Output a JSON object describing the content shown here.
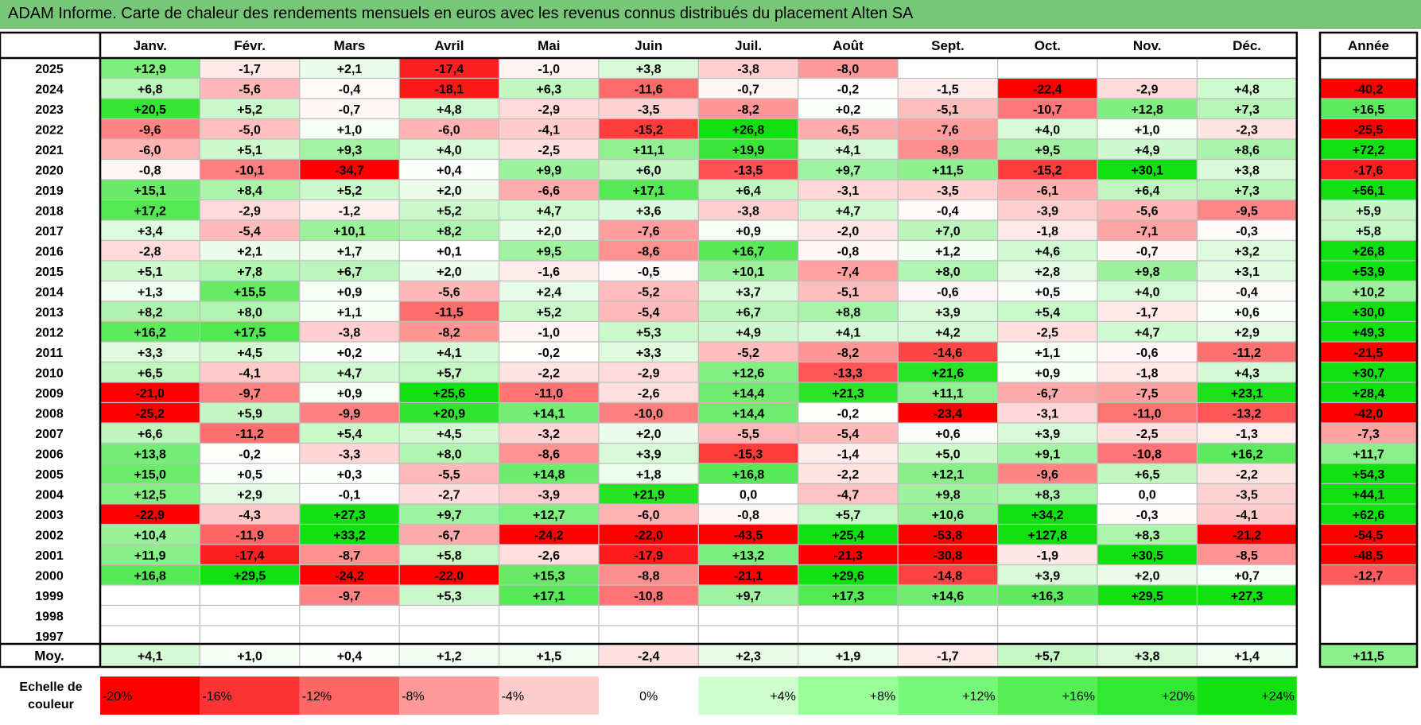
{
  "title": "ADAM Informe. Carte de chaleur des rendements mensuels en euros avec les revenus connus distribués du placement Alten SA",
  "chart_data": {
    "type": "heatmap",
    "columns": [
      "Janv.",
      "Févr.",
      "Mars",
      "Avril",
      "Mai",
      "Juin",
      "Juil.",
      "Août",
      "Sept.",
      "Oct.",
      "Nov.",
      "Déc."
    ],
    "year_column": "Année",
    "rows": [
      {
        "year": "2025",
        "months": [
          "+12,9",
          "-1,7",
          "+2,1",
          "-17,4",
          "-1,0",
          "+3,8",
          "-3,8",
          "-8,0",
          "",
          "",
          "",
          ""
        ],
        "annual": ""
      },
      {
        "year": "2024",
        "months": [
          "+6,8",
          "-5,6",
          "-0,4",
          "-18,1",
          "+6,3",
          "-11,6",
          "-0,7",
          "-0,2",
          "-1,5",
          "-22,4",
          "-2,9",
          "+4,8"
        ],
        "annual": "-40,2"
      },
      {
        "year": "2023",
        "months": [
          "+20,5",
          "+5,2",
          "-0,7",
          "+4,8",
          "-2,9",
          "-3,5",
          "-8,2",
          "+0,2",
          "-5,1",
          "-10,7",
          "+12,8",
          "+7,3"
        ],
        "annual": "+16,5"
      },
      {
        "year": "2022",
        "months": [
          "-9,6",
          "-5,0",
          "+1,0",
          "-6,0",
          "-4,1",
          "-15,2",
          "+26,8",
          "-6,5",
          "-7,6",
          "+4,0",
          "+1,0",
          "-2,3"
        ],
        "annual": "-25,5"
      },
      {
        "year": "2021",
        "months": [
          "-6,0",
          "+5,1",
          "+9,3",
          "+4,0",
          "-2,5",
          "+11,1",
          "+19,9",
          "+4,1",
          "-8,9",
          "+9,5",
          "+4,9",
          "+8,6"
        ],
        "annual": "+72,2"
      },
      {
        "year": "2020",
        "months": [
          "-0,8",
          "-10,1",
          "-34,7",
          "+0,4",
          "+9,9",
          "+6,0",
          "-13,5",
          "+9,7",
          "+11,5",
          "-15,2",
          "+30,1",
          "+3,8"
        ],
        "annual": "-17,6"
      },
      {
        "year": "2019",
        "months": [
          "+15,1",
          "+8,4",
          "+5,2",
          "+2,0",
          "-6,6",
          "+17,1",
          "+6,4",
          "-3,1",
          "-3,5",
          "-6,1",
          "+6,4",
          "+7,3"
        ],
        "annual": "+56,1"
      },
      {
        "year": "2018",
        "months": [
          "+17,2",
          "-2,9",
          "-1,2",
          "+5,2",
          "+4,7",
          "+3,6",
          "-3,8",
          "+4,7",
          "-0,4",
          "-3,9",
          "-5,6",
          "-9,5"
        ],
        "annual": "+5,9"
      },
      {
        "year": "2017",
        "months": [
          "+3,4",
          "-5,4",
          "+10,1",
          "+8,2",
          "+2,0",
          "-7,6",
          "+0,9",
          "-2,0",
          "+7,0",
          "-1,8",
          "-7,1",
          "-0,3"
        ],
        "annual": "+5,8"
      },
      {
        "year": "2016",
        "months": [
          "-2,8",
          "+2,1",
          "+1,7",
          "+0,1",
          "+9,5",
          "-8,6",
          "+16,7",
          "-0,8",
          "+1,2",
          "+4,6",
          "-0,7",
          "+3,2"
        ],
        "annual": "+26,8"
      },
      {
        "year": "2015",
        "months": [
          "+5,1",
          "+7,8",
          "+6,7",
          "+2,0",
          "-1,6",
          "-0,5",
          "+10,1",
          "-7,4",
          "+8,0",
          "+2,8",
          "+9,8",
          "+3,1"
        ],
        "annual": "+53,9"
      },
      {
        "year": "2014",
        "months": [
          "+1,3",
          "+15,5",
          "+0,9",
          "-5,6",
          "+2,4",
          "-5,2",
          "+3,7",
          "-5,1",
          "-0,6",
          "+0,5",
          "+4,0",
          "-0,4"
        ],
        "annual": "+10,2"
      },
      {
        "year": "2013",
        "months": [
          "+8,2",
          "+8,0",
          "+1,1",
          "-11,5",
          "+5,2",
          "-5,4",
          "+6,7",
          "+8,8",
          "+3,9",
          "+5,4",
          "-1,7",
          "+0,6"
        ],
        "annual": "+30,0"
      },
      {
        "year": "2012",
        "months": [
          "+16,2",
          "+17,5",
          "-3,8",
          "-8,2",
          "-1,0",
          "+5,3",
          "+4,9",
          "+4,1",
          "+4,2",
          "-2,5",
          "+4,7",
          "+2,9"
        ],
        "annual": "+49,3"
      },
      {
        "year": "2011",
        "months": [
          "+3,3",
          "+4,5",
          "+0,2",
          "+4,1",
          "-0,2",
          "+3,3",
          "-5,2",
          "-8,2",
          "-14,6",
          "+1,1",
          "-0,6",
          "-11,2"
        ],
        "annual": "-21,5"
      },
      {
        "year": "2010",
        "months": [
          "+6,5",
          "-4,1",
          "+4,7",
          "+5,7",
          "-2,2",
          "-2,9",
          "+12,6",
          "-13,3",
          "+21,6",
          "+0,9",
          "-1,8",
          "+4,3"
        ],
        "annual": "+30,7"
      },
      {
        "year": "2009",
        "months": [
          "-21,0",
          "-9,7",
          "+0,9",
          "+25,6",
          "-11,0",
          "-2,6",
          "+14,4",
          "+21,3",
          "+11,1",
          "-6,7",
          "-7,5",
          "+23,1"
        ],
        "annual": "+28,4"
      },
      {
        "year": "2008",
        "months": [
          "-25,2",
          "+5,9",
          "-9,9",
          "+20,9",
          "+14,1",
          "-10,0",
          "+14,4",
          "-0,2",
          "-23,4",
          "-3,1",
          "-11,0",
          "-13,2"
        ],
        "annual": "-42,0"
      },
      {
        "year": "2007",
        "months": [
          "+6,6",
          "-11,2",
          "+5,4",
          "+4,5",
          "-3,2",
          "+2,0",
          "-5,5",
          "-5,4",
          "+0,6",
          "+3,9",
          "-2,5",
          "-1,3"
        ],
        "annual": "-7,3"
      },
      {
        "year": "2006",
        "months": [
          "+13,8",
          "-0,2",
          "-3,3",
          "+8,0",
          "-8,6",
          "+3,9",
          "-15,3",
          "-1,4",
          "+5,0",
          "+9,1",
          "-10,8",
          "+16,2"
        ],
        "annual": "+11,7"
      },
      {
        "year": "2005",
        "months": [
          "+15,0",
          "+0,5",
          "+0,3",
          "-5,5",
          "+14,8",
          "+1,8",
          "+16,8",
          "-2,2",
          "+12,1",
          "-9,6",
          "+6,5",
          "-2,2"
        ],
        "annual": "+54,3"
      },
      {
        "year": "2004",
        "months": [
          "+12,5",
          "+2,9",
          "-0,1",
          "-2,7",
          "-3,9",
          "+21,9",
          "0,0",
          "-4,7",
          "+9,8",
          "+8,3",
          "0,0",
          "-3,5"
        ],
        "annual": "+44,1"
      },
      {
        "year": "2003",
        "months": [
          "-22,9",
          "-4,3",
          "+27,3",
          "+9,7",
          "+12,7",
          "-6,0",
          "-0,8",
          "+5,7",
          "+10,6",
          "+34,2",
          "-0,3",
          "-4,1"
        ],
        "annual": "+62,6"
      },
      {
        "year": "2002",
        "months": [
          "+10,4",
          "-11,9",
          "+33,2",
          "-6,7",
          "-24,2",
          "-22,0",
          "-43,5",
          "+25,4",
          "-53,8",
          "+127,8",
          "+8,3",
          "-21,2"
        ],
        "annual": "-54,5"
      },
      {
        "year": "2001",
        "months": [
          "+11,9",
          "-17,4",
          "-8,7",
          "+5,8",
          "-2,6",
          "-17,9",
          "+13,2",
          "-21,3",
          "-30,8",
          "-1,9",
          "+30,5",
          "-8,5"
        ],
        "annual": "-48,5"
      },
      {
        "year": "2000",
        "months": [
          "+16,8",
          "+29,5",
          "-24,2",
          "-22,0",
          "+15,3",
          "-8,8",
          "-21,1",
          "+29,6",
          "-14,8",
          "+3,9",
          "+2,0",
          "+0,7"
        ],
        "annual": "-12,7"
      },
      {
        "year": "1999",
        "months": [
          "",
          "",
          "-9,7",
          "+5,3",
          "+17,1",
          "-10,8",
          "+9,7",
          "+17,3",
          "+14,6",
          "+16,3",
          "+29,5",
          "+27,3"
        ],
        "annual": ""
      },
      {
        "year": "1998",
        "months": [
          "",
          "",
          "",
          "",
          "",
          "",
          "",
          "",
          "",
          "",
          "",
          ""
        ],
        "annual": ""
      },
      {
        "year": "1997",
        "months": [
          "",
          "",
          "",
          "",
          "",
          "",
          "",
          "",
          "",
          "",
          "",
          ""
        ],
        "annual": ""
      }
    ],
    "average": {
      "label": "Moy.",
      "months": [
        "+4,1",
        "+1,0",
        "+0,4",
        "+1,2",
        "+1,5",
        "-2,4",
        "+2,3",
        "+1,9",
        "-1,7",
        "+5,7",
        "+3,8",
        "+1,4"
      ],
      "annual": "+11,5"
    },
    "scale": {
      "label_line1": "Echelle de",
      "label_line2": "couleur",
      "stops": [
        {
          "label": "-20%",
          "color": "#ff0000"
        },
        {
          "label": "-16%",
          "color": "#ff3333"
        },
        {
          "label": "-12%",
          "color": "#ff6666"
        },
        {
          "label": "-8%",
          "color": "#ff9999"
        },
        {
          "label": "-4%",
          "color": "#ffcccc"
        },
        {
          "label": "0%",
          "color": "#ffffff"
        },
        {
          "label": "+4%",
          "color": "#ccffcc"
        },
        {
          "label": "+8%",
          "color": "#99ff99"
        },
        {
          "label": "+12%",
          "color": "#77f777"
        },
        {
          "label": "+16%",
          "color": "#55ef55"
        },
        {
          "label": "+20%",
          "color": "#33e833"
        },
        {
          "label": "+24%",
          "color": "#11e011"
        }
      ]
    },
    "colors": {
      "title_bar": "#76c776",
      "grid": "#bfbfbf",
      "border": "#000000"
    }
  }
}
